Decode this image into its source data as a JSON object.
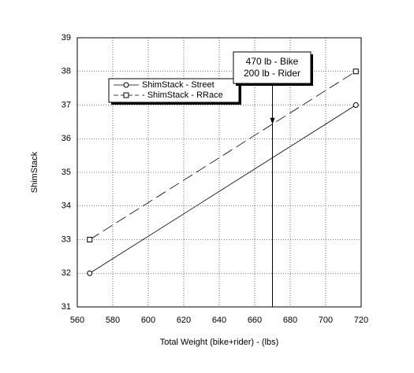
{
  "chart_data": {
    "type": "line",
    "x_label": "Total Weight (bike+rider) - (lbs)",
    "y_label": "ShimStack",
    "x": [
      567,
      717
    ],
    "series": [
      {
        "name": "ShimStack - Street",
        "color": "#000000",
        "values": [
          32,
          37
        ],
        "marker": "circle",
        "dash": "solid"
      },
      {
        "name": "- ShimStack - RRace",
        "color": "#000000",
        "values": [
          33,
          38
        ],
        "marker": "square",
        "dash": "dashed"
      }
    ],
    "xlim": [
      560,
      720
    ],
    "xticks": [
      560,
      580,
      600,
      620,
      640,
      660,
      680,
      700,
      720
    ],
    "ylim": [
      31,
      39
    ],
    "yticks": [
      31,
      32,
      33,
      34,
      35,
      36,
      37,
      38,
      39
    ],
    "grid": true,
    "annotation": {
      "lines": [
        "470 lb - Bike",
        "200 lb - Rider"
      ],
      "x": 670
    }
  }
}
